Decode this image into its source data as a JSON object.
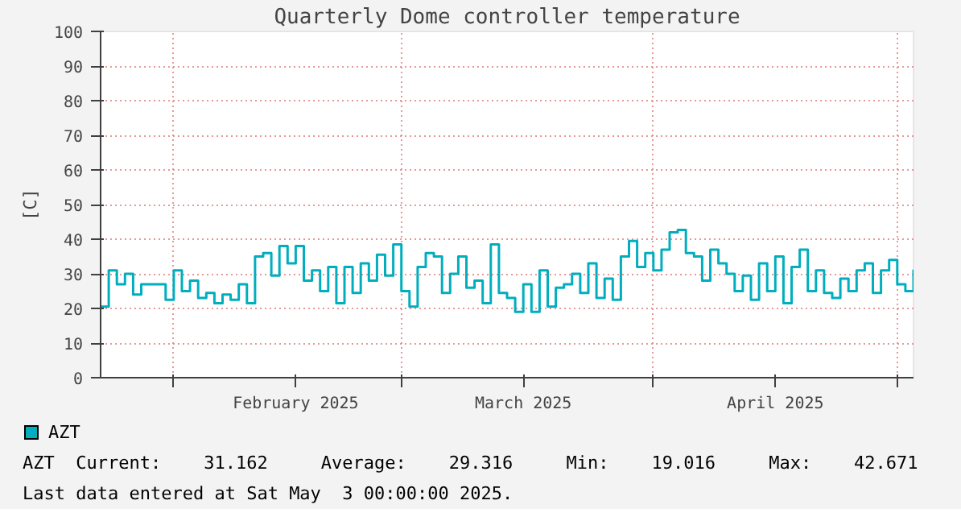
{
  "chart_data": {
    "type": "step",
    "title": "Quarterly Dome controller temperature",
    "ylabel": "[C]",
    "x": [
      "2025-01-23",
      "2025-01-24",
      "2025-01-25",
      "2025-01-26",
      "2025-01-27",
      "2025-01-28",
      "2025-01-29",
      "2025-01-30",
      "2025-01-31",
      "2025-02-01",
      "2025-02-02",
      "2025-02-03",
      "2025-02-04",
      "2025-02-05",
      "2025-02-06",
      "2025-02-07",
      "2025-02-08",
      "2025-02-09",
      "2025-02-10",
      "2025-02-11",
      "2025-02-12",
      "2025-02-13",
      "2025-02-14",
      "2025-02-15",
      "2025-02-16",
      "2025-02-17",
      "2025-02-18",
      "2025-02-19",
      "2025-02-20",
      "2025-02-21",
      "2025-02-22",
      "2025-02-23",
      "2025-02-24",
      "2025-02-25",
      "2025-02-26",
      "2025-02-27",
      "2025-02-28",
      "2025-03-01",
      "2025-03-02",
      "2025-03-03",
      "2025-03-04",
      "2025-03-05",
      "2025-03-06",
      "2025-03-07",
      "2025-03-08",
      "2025-03-09",
      "2025-03-10",
      "2025-03-11",
      "2025-03-12",
      "2025-03-13",
      "2025-03-14",
      "2025-03-15",
      "2025-03-16",
      "2025-03-17",
      "2025-03-18",
      "2025-03-19",
      "2025-03-20",
      "2025-03-21",
      "2025-03-22",
      "2025-03-23",
      "2025-03-24",
      "2025-03-25",
      "2025-03-26",
      "2025-03-27",
      "2025-03-28",
      "2025-03-29",
      "2025-03-30",
      "2025-03-31",
      "2025-04-01",
      "2025-04-02",
      "2025-04-03",
      "2025-04-04",
      "2025-04-05",
      "2025-04-06",
      "2025-04-07",
      "2025-04-08",
      "2025-04-09",
      "2025-04-10",
      "2025-04-11",
      "2025-04-12",
      "2025-04-13",
      "2025-04-14",
      "2025-04-15",
      "2025-04-16",
      "2025-04-17",
      "2025-04-18",
      "2025-04-19",
      "2025-04-20",
      "2025-04-21",
      "2025-04-22",
      "2025-04-23",
      "2025-04-24",
      "2025-04-25",
      "2025-04-26",
      "2025-04-27",
      "2025-04-28",
      "2025-04-29",
      "2025-04-30",
      "2025-05-01",
      "2025-05-02",
      "2025-05-03"
    ],
    "series": [
      {
        "name": "AZT",
        "color": "#00aebe",
        "values": [
          20.5,
          31,
          27,
          30,
          24,
          27,
          27,
          27,
          22.5,
          31,
          25,
          28,
          23,
          24.5,
          21.5,
          24,
          22.5,
          27,
          21.5,
          35,
          36,
          29.5,
          38,
          33,
          38,
          28,
          31,
          25,
          32,
          21.5,
          32,
          24.5,
          33,
          28,
          35.5,
          29.5,
          38.5,
          25,
          20.5,
          32,
          36,
          35,
          24.5,
          30,
          35,
          26,
          28,
          21.5,
          38.5,
          24.5,
          23,
          19,
          27,
          19,
          31,
          20.5,
          26,
          27,
          30,
          24.5,
          33,
          23,
          28.6,
          22.5,
          35,
          39.5,
          32,
          36,
          31,
          37,
          42,
          42.7,
          36,
          35,
          28,
          37,
          33,
          30,
          25,
          29.5,
          22.5,
          33,
          25,
          35,
          21.5,
          32,
          37,
          25,
          31,
          24.5,
          23,
          28.6,
          25,
          31,
          33,
          24.5,
          31,
          34,
          27,
          25,
          31.2
        ]
      }
    ],
    "xlim": [
      "2025-01-23",
      "2025-05-03"
    ],
    "xticks": [
      {
        "value": "2025-02-01",
        "label": null
      },
      {
        "value": "2025-02-16",
        "label": "February 2025"
      },
      {
        "value": "2025-03-01",
        "label": null
      },
      {
        "value": "2025-03-16",
        "label": "March 2025"
      },
      {
        "value": "2025-04-01",
        "label": null
      },
      {
        "value": "2025-04-16",
        "label": "April 2025"
      },
      {
        "value": "2025-05-01",
        "label": null
      }
    ],
    "ylim": [
      0,
      100
    ],
    "yticks": [
      0,
      10,
      20,
      30,
      40,
      50,
      60,
      70,
      80,
      90,
      100
    ],
    "grid": true,
    "legend": "bottom",
    "line_style": "solid",
    "annotations": [
      "AZT  Current:    31.162     Average:    29.316     Min:    19.016     Max:    42.671",
      "Last data entered at Sat May  3 00:00:00 2025."
    ]
  }
}
